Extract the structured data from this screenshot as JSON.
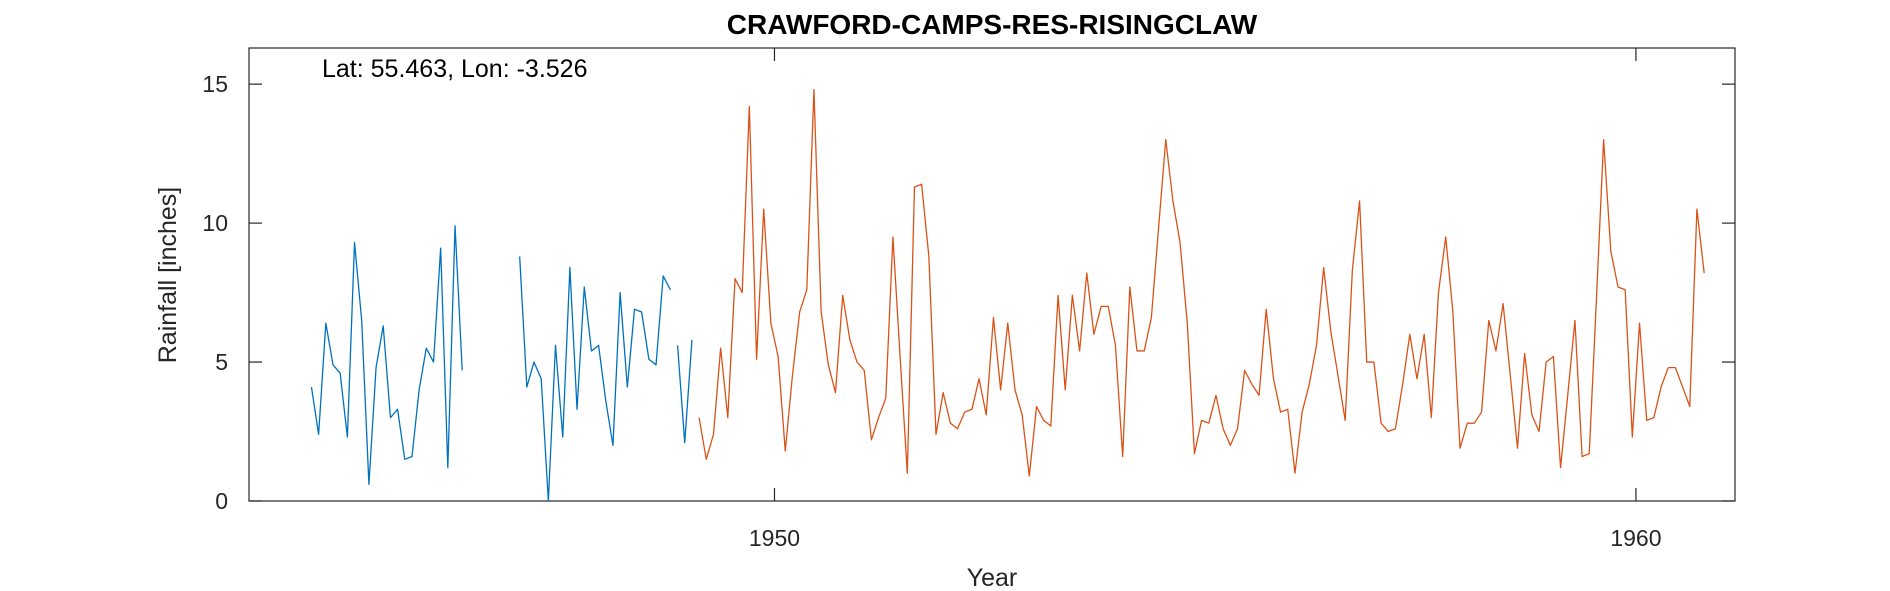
{
  "chart_data": {
    "type": "line",
    "title": "CRAWFORD-CAMPS-RES-RISINGCLAW",
    "annotation": "Lat: 55.463, Lon: -3.526",
    "xlabel": "Year",
    "ylabel": "Rainfall [inches]",
    "xlim": [
      1943.9,
      1961.15
    ],
    "ylim": [
      0,
      16.3
    ],
    "xticks": [
      1950,
      1960
    ],
    "yticks": [
      0,
      5,
      10,
      15
    ],
    "grid": false,
    "series": [
      {
        "name": "blue-segment-1",
        "color": "#0072BD",
        "x": [
          1944.625,
          1944.708,
          1944.792,
          1944.875,
          1944.958,
          1945.042,
          1945.125,
          1945.208,
          1945.292,
          1945.375,
          1945.458,
          1945.542,
          1945.625,
          1945.708,
          1945.792,
          1945.875,
          1945.958,
          1946.042,
          1946.125,
          1946.208,
          1946.292,
          1946.375,
          1946.458,
          1946.542,
          1946.625
        ],
        "y": [
          4.1,
          2.4,
          6.4,
          4.9,
          4.6,
          2.3,
          9.3,
          6.5,
          0.6,
          4.8,
          6.3,
          3.0,
          3.3,
          1.5,
          1.6,
          4.0,
          5.5,
          5.0,
          9.1,
          1.2,
          9.9,
          4.7,
          null,
          null,
          null
        ]
      },
      {
        "name": "blue-segment-2",
        "color": "#0072BD",
        "x": [
          1947.042,
          1947.125,
          1947.208,
          1947.292,
          1947.375,
          1947.458,
          1947.542,
          1947.625,
          1947.708,
          1947.792,
          1947.875,
          1947.958,
          1948.042,
          1948.125,
          1948.208,
          1948.292,
          1948.375,
          1948.458,
          1948.542,
          1948.625,
          1948.708,
          1948.792
        ],
        "y": [
          8.8,
          4.1,
          5.0,
          4.4,
          0.0,
          5.6,
          2.3,
          8.4,
          3.3,
          7.7,
          5.4,
          5.6,
          3.6,
          2.0,
          7.5,
          4.1,
          6.9,
          6.8,
          5.1,
          4.9,
          8.1,
          7.6
        ]
      },
      {
        "name": "blue-segment-3",
        "color": "#0072BD",
        "x": [
          1948.875,
          1948.958,
          1949.042
        ],
        "y": [
          5.6,
          2.1,
          5.8
        ]
      },
      {
        "name": "orange-series",
        "color": "#D95319",
        "x": [
          1949.125,
          1949.208,
          1949.292,
          1949.375,
          1949.458,
          1949.542,
          1949.625,
          1949.708,
          1949.792,
          1949.875,
          1949.958,
          1950.042,
          1950.125,
          1950.208,
          1950.292,
          1950.375,
          1950.458,
          1950.542,
          1950.625,
          1950.708,
          1950.792,
          1950.875,
          1950.958,
          1951.042,
          1951.125,
          1951.208,
          1951.292,
          1951.375,
          1951.458,
          1951.542,
          1951.625,
          1951.708,
          1951.792,
          1951.875,
          1951.958,
          1952.042,
          1952.125,
          1952.208,
          1952.292,
          1952.375,
          1952.458,
          1952.542,
          1952.625,
          1952.708,
          1952.792,
          1952.875,
          1952.958,
          1953.042,
          1953.125,
          1953.208,
          1953.292,
          1953.375,
          1953.458,
          1953.542,
          1953.625,
          1953.708,
          1953.792,
          1953.875,
          1953.958,
          1954.042,
          1954.125,
          1954.208,
          1954.292,
          1954.375,
          1954.458,
          1954.542,
          1954.625,
          1954.708,
          1954.792,
          1954.875,
          1954.958,
          1955.042,
          1955.125,
          1955.208,
          1955.292,
          1955.375,
          1955.458,
          1955.542,
          1955.625,
          1955.708,
          1955.792,
          1955.875,
          1955.958,
          1956.042,
          1956.125,
          1956.208,
          1956.292,
          1956.375,
          1956.458,
          1956.542,
          1956.625,
          1956.708,
          1956.792,
          1956.875,
          1956.958,
          1957.042,
          1957.125,
          1957.208,
          1957.292,
          1957.375,
          1957.458,
          1957.542,
          1957.625,
          1957.708,
          1957.792,
          1957.875,
          1957.958,
          1958.042,
          1958.125,
          1958.208,
          1958.292,
          1958.375,
          1958.458,
          1958.542,
          1958.625,
          1958.708,
          1958.792,
          1958.875,
          1958.958,
          1959.042,
          1959.125,
          1959.208,
          1959.292,
          1959.375,
          1959.458,
          1959.542,
          1959.625,
          1959.708,
          1959.792,
          1959.875,
          1959.958,
          1960.042,
          1960.125,
          1960.208,
          1960.292,
          1960.375
        ],
        "y": [
          3.0,
          1.5,
          2.4,
          5.5,
          3.0,
          8.0,
          7.5,
          14.2,
          5.1,
          10.5,
          6.4,
          5.2,
          1.8,
          4.5,
          6.8,
          7.6,
          14.8,
          6.8,
          4.9,
          3.9,
          7.4,
          5.8,
          5.0,
          4.7,
          2.2,
          3.0,
          3.7,
          9.5,
          5.2,
          1.0,
          11.3,
          11.4,
          8.8,
          2.4,
          3.9,
          2.8,
          2.6,
          3.2,
          3.3,
          4.4,
          3.1,
          6.6,
          4.0,
          6.4,
          4.0,
          3.1,
          0.9,
          3.4,
          2.9,
          2.7,
          7.4,
          4.0,
          7.4,
          5.4,
          8.2,
          6.0,
          7.0,
          7.0,
          5.6,
          1.6,
          7.7,
          5.4,
          5.4,
          6.6,
          9.8,
          13.0,
          10.8,
          9.3,
          6.4,
          1.7,
          2.9,
          2.8,
          3.8,
          2.6,
          2.0,
          2.6,
          4.7,
          4.2,
          3.8,
          6.9,
          4.4,
          3.2,
          3.3,
          1.0,
          3.2,
          4.2,
          5.6,
          8.4,
          6.1,
          4.5,
          2.9,
          8.3,
          10.8,
          5.0,
          5.0,
          2.8,
          2.5,
          2.6,
          4.2,
          6.0,
          4.4,
          6.0,
          3.0,
          7.5,
          9.5,
          6.8,
          1.9,
          2.8,
          2.8,
          3.2,
          6.5,
          5.4,
          7.1,
          4.5,
          1.9,
          5.3,
          3.1,
          2.5,
          5.0,
          5.2,
          1.2,
          3.8,
          6.5,
          1.6,
          1.7,
          7.3,
          13.0,
          9.0,
          7.7,
          7.6,
          2.3,
          6.4,
          2.9,
          3.0,
          4.1,
          4.8
        ]
      },
      {
        "name": "orange-series-tail",
        "color": "#D95319",
        "x": [
          1960.375,
          1960.458,
          1960.542,
          1960.625,
          1960.708,
          1960.792
        ],
        "y": [
          4.8,
          4.8,
          4.1,
          3.4,
          10.5,
          8.2
        ]
      }
    ]
  }
}
